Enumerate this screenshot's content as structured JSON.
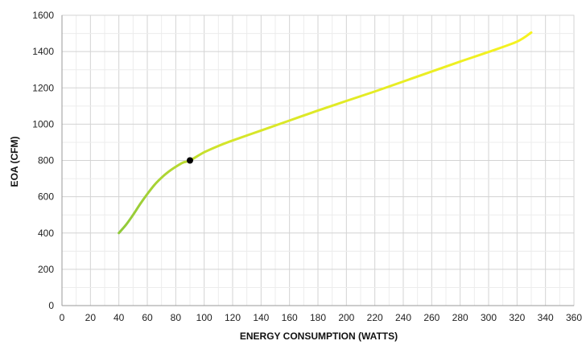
{
  "chart_data": {
    "type": "line",
    "title": "",
    "xlabel": "ENERGY CONSUMPTION (WATTS)",
    "ylabel": "EOA (CFM)",
    "xlim": [
      0,
      360
    ],
    "ylim": [
      0,
      1600
    ],
    "x_ticks": [
      0,
      20,
      40,
      60,
      80,
      100,
      120,
      140,
      160,
      180,
      200,
      220,
      240,
      260,
      280,
      300,
      320,
      340,
      360
    ],
    "y_ticks": [
      0,
      200,
      400,
      600,
      800,
      1000,
      1200,
      1400,
      1600
    ],
    "x_minor_step": 10,
    "y_minor_step": 100,
    "grid": true,
    "series": [
      {
        "color_start": "#8fc93a",
        "color_end": "#f7f31f",
        "x": [
          40,
          45,
          50,
          55,
          60,
          65,
          70,
          75,
          80,
          85,
          90,
          100,
          110,
          120,
          140,
          160,
          180,
          200,
          220,
          240,
          260,
          280,
          300,
          320,
          330
        ],
        "y": [
          400,
          445,
          500,
          560,
          615,
          665,
          705,
          738,
          765,
          788,
          800,
          845,
          880,
          910,
          965,
          1020,
          1075,
          1128,
          1180,
          1235,
          1290,
          1345,
          1398,
          1455,
          1505
        ]
      }
    ],
    "marker": {
      "x": 90,
      "y": 800,
      "color": "#000000"
    }
  }
}
